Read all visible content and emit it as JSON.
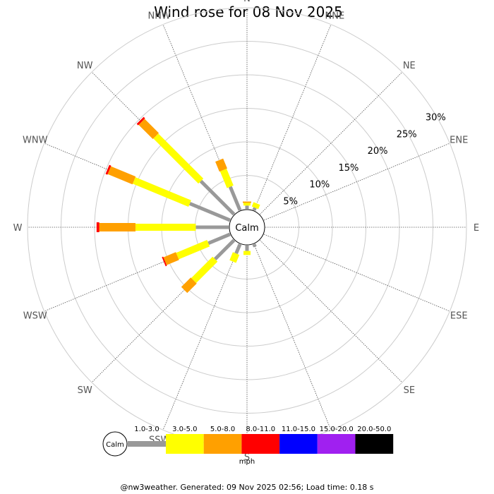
{
  "chart_data": {
    "type": "wind-rose",
    "title": "Wind rose for 08 Nov 2025",
    "calm_label": "Calm",
    "unit": "mph",
    "ring_labels": [
      "5%",
      "10%",
      "15%",
      "20%",
      "25%",
      "30%"
    ],
    "ring_max": 30,
    "directions": [
      "N",
      "NNE",
      "NE",
      "ENE",
      "E",
      "ESE",
      "SE",
      "SSE",
      "S",
      "SSW",
      "SW",
      "WSW",
      "W",
      "WNW",
      "NW",
      "NNW"
    ],
    "bins": [
      {
        "label": "1.0-3.0",
        "color": "#999999"
      },
      {
        "label": "3.0-5.0",
        "color": "#ffff00"
      },
      {
        "label": "5.0-8.0",
        "color": "#ffa000"
      },
      {
        "label": "8.0-11.0",
        "color": "#ff0000"
      },
      {
        "label": "11.0-15.0",
        "color": "#0000ff"
      },
      {
        "label": "15.0-20.0",
        "color": "#a020f0"
      },
      {
        "label": "20.0-50.0",
        "color": "#000000"
      }
    ],
    "series": [
      {
        "direction": "N",
        "values": [
          0.5,
          0.4,
          0.2,
          0,
          0,
          0,
          0
        ]
      },
      {
        "direction": "NNE",
        "values": [
          0.4,
          0.7,
          0,
          0,
          0,
          0,
          0
        ]
      },
      {
        "direction": "NE",
        "values": [
          0,
          0,
          0,
          0,
          0,
          0,
          0
        ]
      },
      {
        "direction": "ENE",
        "values": [
          0,
          0,
          0,
          0,
          0,
          0,
          0
        ]
      },
      {
        "direction": "E",
        "values": [
          0,
          0,
          0,
          0,
          0,
          0,
          0
        ]
      },
      {
        "direction": "ESE",
        "values": [
          0,
          0,
          0,
          0,
          0,
          0,
          0
        ]
      },
      {
        "direction": "SE",
        "values": [
          0,
          0,
          0,
          0,
          0,
          0,
          0
        ]
      },
      {
        "direction": "SSE",
        "values": [
          0.4,
          0,
          0,
          0,
          0,
          0,
          0
        ]
      },
      {
        "direction": "S",
        "values": [
          0.8,
          0.6,
          0,
          0,
          0,
          0,
          0
        ]
      },
      {
        "direction": "SSW",
        "values": [
          1.5,
          1.3,
          0,
          0,
          0,
          0,
          0
        ]
      },
      {
        "direction": "SW",
        "values": [
          4.0,
          4.5,
          2.0,
          0,
          0,
          0,
          0
        ]
      },
      {
        "direction": "WSW",
        "values": [
          3.5,
          5.0,
          2.0,
          0.2,
          0,
          0,
          0
        ]
      },
      {
        "direction": "W",
        "values": [
          4.9,
          9.0,
          5.4,
          0.4,
          0,
          0,
          0
        ]
      },
      {
        "direction": "WNW",
        "values": [
          6.5,
          9.0,
          4.0,
          0.3,
          0,
          0,
          0
        ]
      },
      {
        "direction": "NW",
        "values": [
          7.0,
          9.5,
          3.0,
          0.3,
          0,
          0,
          0
        ]
      },
      {
        "direction": "NNW",
        "values": [
          3.8,
          2.7,
          1.6,
          0,
          0,
          0,
          0
        ]
      }
    ]
  },
  "footer": {
    "text": "@nw3weather. Generated: 09 Nov 2025 02:56; Load time: 0.18 s"
  }
}
